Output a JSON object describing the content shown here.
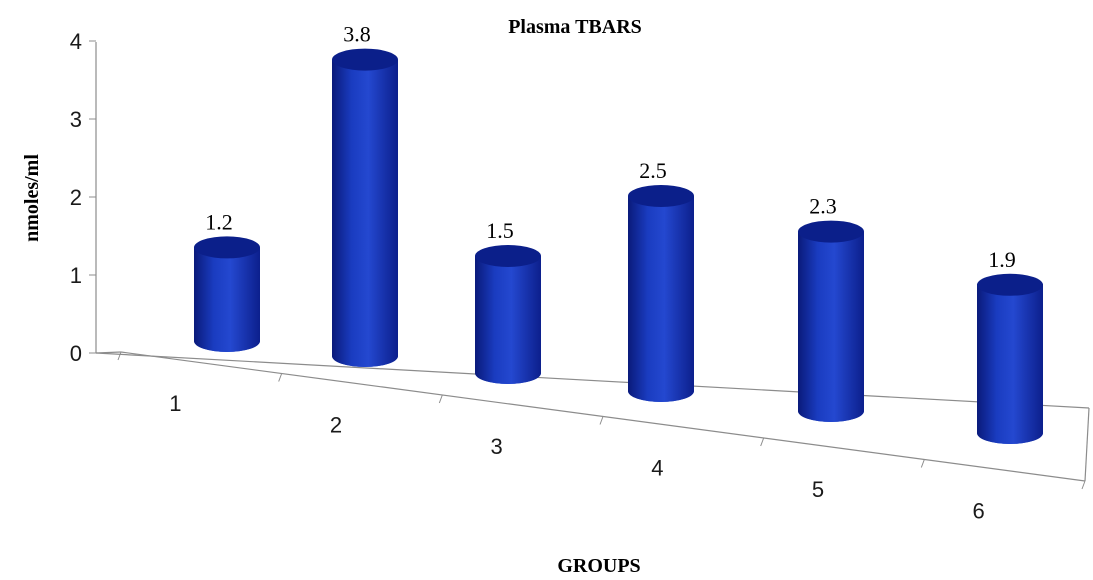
{
  "chart_data": {
    "type": "bar",
    "title": "Plasma TBARS",
    "xlabel": "GROUPS",
    "ylabel": "nmoles/ml",
    "categories": [
      "1",
      "2",
      "3",
      "4",
      "5",
      "6"
    ],
    "values": [
      1.2,
      3.8,
      1.5,
      2.5,
      2.3,
      1.9
    ],
    "data_labels": [
      "1.2",
      "3.8",
      "1.5",
      "2.5",
      "2.3",
      "1.9"
    ],
    "ylim": [
      0,
      4
    ],
    "yticks": [
      "0",
      "1",
      "2",
      "3",
      "4"
    ],
    "bar_style": "3d-cylinder",
    "grid": false,
    "legend": "none",
    "colors": {
      "bar_side": "#1530a8",
      "bar_top": "#0b1f8a",
      "bar_bottom": "#2f55d4",
      "axis": "#8c8c8c"
    }
  }
}
